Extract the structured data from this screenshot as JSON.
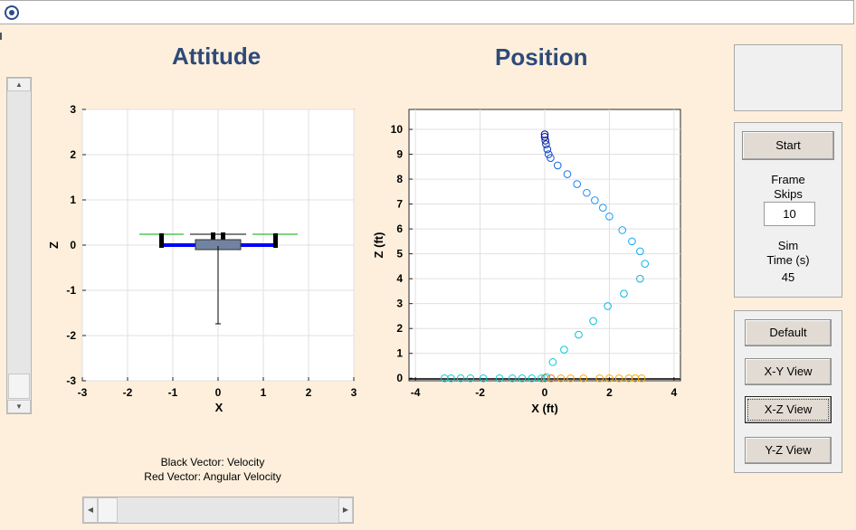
{
  "attitude": {
    "title": "Attitude",
    "xlabel": "X",
    "ylabel": "Z",
    "xticks": [
      "-3",
      "-2",
      "-1",
      "0",
      "1",
      "2",
      "3"
    ],
    "yticks": [
      "3",
      "2",
      "1",
      "0",
      "-1",
      "-2",
      "-3"
    ]
  },
  "position": {
    "title": "Position",
    "xlabel": "X (ft)",
    "ylabel": "Z (ft)",
    "xticks": [
      "-4",
      "-2",
      "0",
      "2",
      "4"
    ],
    "yticks": [
      "10",
      "9",
      "8",
      "7",
      "6",
      "5",
      "4",
      "3",
      "2",
      "1",
      "0"
    ]
  },
  "legend": {
    "line1": "Black Vector: Velocity",
    "line2": "Red Vector:    Angular Velocity"
  },
  "controls": {
    "start_label": "Start",
    "frame_skips_label_1": "Frame",
    "frame_skips_label_2": "Skips",
    "frame_skips_value": "10",
    "sim_time_label_1": "Sim",
    "sim_time_label_2": "Time (s)",
    "sim_time_value": "45"
  },
  "views": {
    "default_label": "Default",
    "xy_label": "X-Y View",
    "xz_label": "X-Z View",
    "yz_label": "Y-Z View"
  },
  "colors": {
    "heading": "#2e4a78",
    "background": "#fdefdc",
    "arm": "#0000ff",
    "rotor": "#00aa00",
    "path_high": "#00008b",
    "path_mid": "#1e90ff",
    "path_low": "#00ced1",
    "ground_trace": "#ffa500"
  },
  "chart_data": [
    {
      "type": "scatter",
      "title": "Attitude",
      "xlabel": "X",
      "ylabel": "Z",
      "xlim": [
        -3,
        3
      ],
      "ylim": [
        -3,
        3
      ],
      "grid": true,
      "series": [
        {
          "values": [
            [
              -1.3,
              0.0
            ],
            [
              1.3,
              0.0
            ],
            [
              0.0,
              -1.75
            ]
          ]
        }
      ]
    },
    {
      "type": "scatter",
      "title": "Position",
      "xlabel": "X (ft)",
      "ylabel": "Z (ft)",
      "xlim": [
        -4.2,
        4.2
      ],
      "ylim": [
        -0.1,
        10.8
      ],
      "grid": true,
      "series": [
        {
          "values": [
            [
              0.0,
              9.8
            ],
            [
              0.0,
              9.7
            ],
            [
              0.02,
              9.55
            ],
            [
              0.04,
              9.4
            ],
            [
              0.08,
              9.2
            ],
            [
              0.12,
              9.0
            ],
            [
              0.18,
              8.85
            ],
            [
              0.4,
              8.55
            ],
            [
              0.7,
              8.2
            ],
            [
              1.0,
              7.8
            ],
            [
              1.3,
              7.45
            ],
            [
              1.55,
              7.15
            ],
            [
              1.8,
              6.85
            ],
            [
              2.0,
              6.5
            ],
            [
              2.4,
              5.95
            ],
            [
              2.7,
              5.5
            ],
            [
              2.95,
              5.1
            ],
            [
              3.1,
              4.6
            ],
            [
              2.95,
              4.0
            ],
            [
              2.45,
              3.4
            ],
            [
              1.95,
              2.9
            ],
            [
              1.5,
              2.3
            ],
            [
              1.05,
              1.75
            ],
            [
              0.6,
              1.15
            ],
            [
              0.25,
              0.65
            ],
            [
              0.05,
              0.05
            ]
          ]
        },
        {
          "values": [
            [
              -3.1,
              0.0
            ],
            [
              -2.9,
              0.0
            ],
            [
              -2.6,
              0.0
            ],
            [
              -2.3,
              0.0
            ],
            [
              -1.9,
              0.0
            ],
            [
              -1.4,
              0.0
            ],
            [
              -1.0,
              0.0
            ],
            [
              -0.7,
              0.0
            ],
            [
              -0.4,
              0.0
            ],
            [
              -0.1,
              0.0
            ]
          ]
        },
        {
          "values": [
            [
              0.0,
              0.0
            ],
            [
              0.2,
              0.0
            ],
            [
              0.5,
              0.0
            ],
            [
              0.8,
              0.0
            ],
            [
              1.2,
              0.0
            ],
            [
              1.7,
              0.0
            ],
            [
              2.0,
              0.0
            ],
            [
              2.3,
              0.0
            ],
            [
              2.6,
              0.0
            ],
            [
              2.8,
              0.0
            ],
            [
              3.0,
              0.0
            ]
          ]
        }
      ]
    }
  ]
}
